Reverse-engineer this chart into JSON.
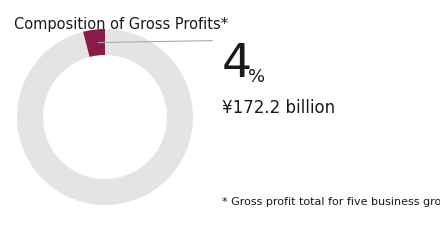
{
  "title": "Composition of Gross Profits*",
  "title_fontsize": 10.5,
  "slice_highlight_pct": 4,
  "slice_rest_pct": 96,
  "highlight_color": "#8B1A4A",
  "rest_color": "#E4E4E4",
  "percent_label": "4",
  "percent_suffix": "%",
  "value_label": "¥172.2 billion",
  "footnote": "* Gross profit total for five business groups",
  "background_color": "#ffffff",
  "text_color": "#1a1a1a",
  "line_color": "#aaaaaa",
  "percent_fontsize": 34,
  "suffix_fontsize": 13,
  "value_fontsize": 12,
  "footnote_fontsize": 8
}
